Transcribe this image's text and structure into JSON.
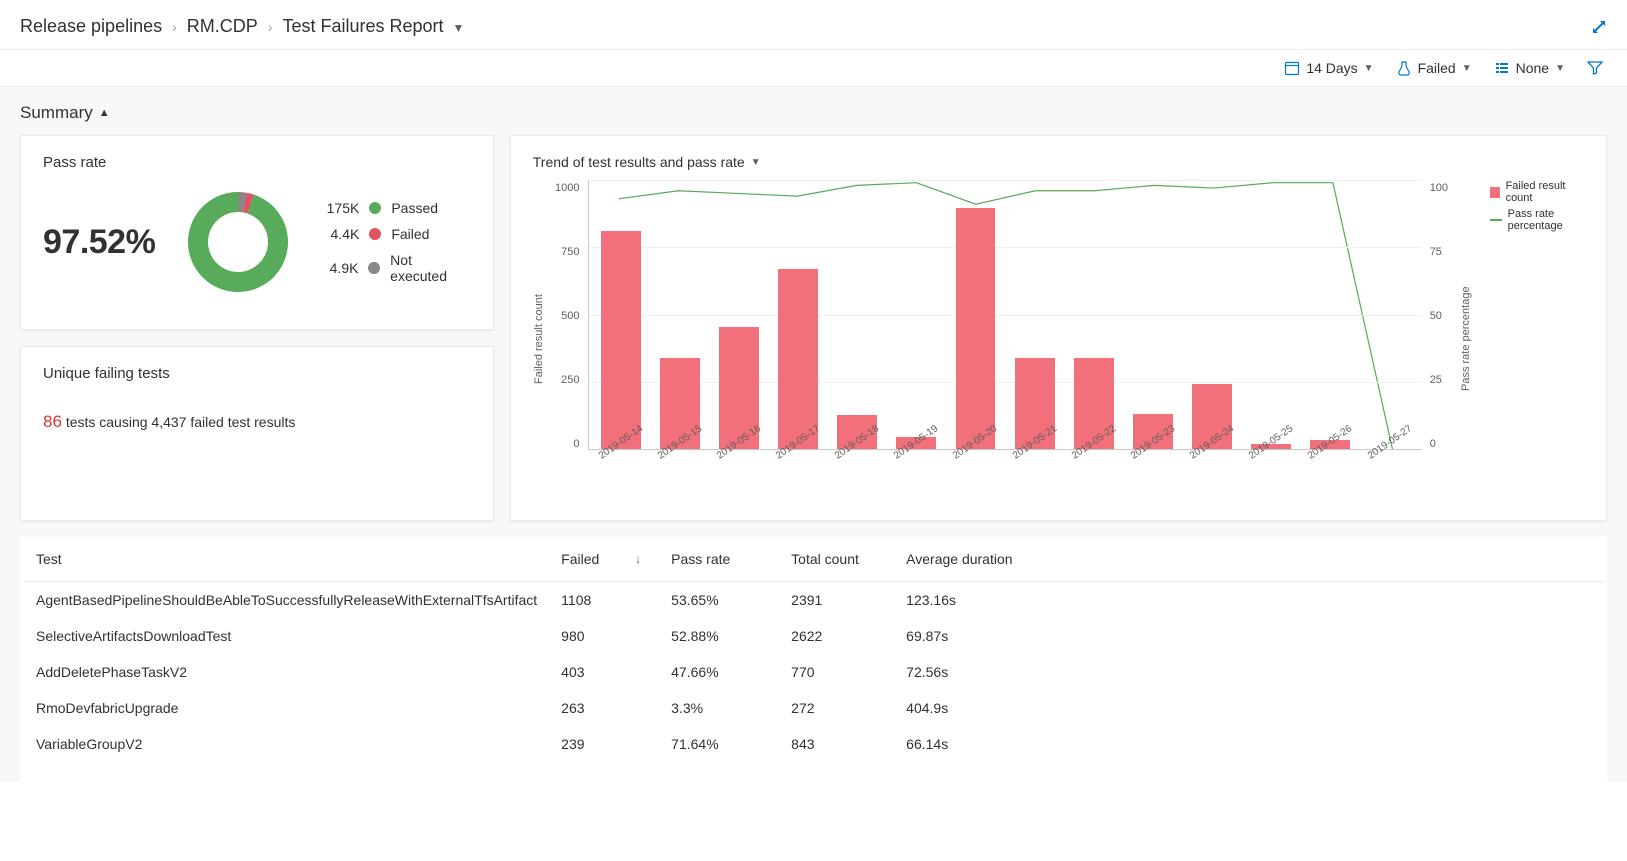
{
  "breadcrumb": {
    "items": [
      "Release pipelines",
      "RM.CDP",
      "Test Failures Report"
    ]
  },
  "filters": {
    "days": "14 Days",
    "outcome": "Failed",
    "groupby": "None"
  },
  "summary": {
    "title": "Summary",
    "pass_rate": {
      "title": "Pass rate",
      "percent": "97.52%",
      "donut": {
        "passed_pct": 94.9,
        "failed_pct": 2.4,
        "not_executed_pct": 2.7,
        "colors": {
          "passed": "#57ab5a",
          "failed": "#e15361",
          "not_executed": "#8a8886"
        }
      },
      "legend": [
        {
          "count": "175K",
          "label": "Passed",
          "color": "#57ab5a"
        },
        {
          "count": "4.4K",
          "label": "Failed",
          "color": "#e15361"
        },
        {
          "count": "4.9K",
          "label": "Not executed",
          "color": "#8a8886"
        }
      ]
    },
    "unique": {
      "title": "Unique failing tests",
      "highlight": "86",
      "rest": "tests causing 4,437 failed test results"
    }
  },
  "trend": {
    "title": "Trend of test results and pass rate",
    "y_left": {
      "label": "Failed result count",
      "ticks": [
        "1000",
        "750",
        "500",
        "250",
        "0"
      ],
      "max": 1000
    },
    "y_right": {
      "label": "Pass rate percentage",
      "ticks": [
        "100",
        "75",
        "50",
        "25",
        "0"
      ]
    },
    "legend": {
      "bar_label": "Failed result count",
      "line_label": "Pass rate percentage"
    },
    "bar_color": "#f1707b",
    "line_color": "#57ab5a",
    "x_labels": [
      "2019-05-14",
      "2019-05-15",
      "2019-05-16",
      "2019-05-17",
      "2019-05-18",
      "2019-05-19",
      "2019-05-20",
      "2019-05-21",
      "2019-05-22",
      "2019-05-23",
      "2019-05-24",
      "2019-05-25",
      "2019-05-26",
      "2019-05-27"
    ],
    "bars": [
      810,
      340,
      455,
      670,
      125,
      45,
      895,
      340,
      340,
      130,
      240,
      20,
      35,
      0
    ],
    "pass_line": [
      93,
      96,
      95,
      94,
      98,
      99,
      91,
      96,
      96,
      98,
      97,
      99,
      99,
      0
    ]
  },
  "table": {
    "columns": [
      "Test",
      "Failed",
      "Pass rate",
      "Total count",
      "Average duration"
    ],
    "sorted_col": 1,
    "rows": [
      [
        "AgentBasedPipelineShouldBeAbleToSuccessfullyReleaseWithExternalTfsArtifact",
        "1108",
        "53.65%",
        "2391",
        "123.16s"
      ],
      [
        "SelectiveArtifactsDownloadTest",
        "980",
        "52.88%",
        "2622",
        "69.87s"
      ],
      [
        "AddDeletePhaseTaskV2",
        "403",
        "47.66%",
        "770",
        "72.56s"
      ],
      [
        "RmoDevfabricUpgrade",
        "263",
        "3.3%",
        "272",
        "404.9s"
      ],
      [
        "VariableGroupV2",
        "239",
        "71.64%",
        "843",
        "66.14s"
      ]
    ]
  }
}
